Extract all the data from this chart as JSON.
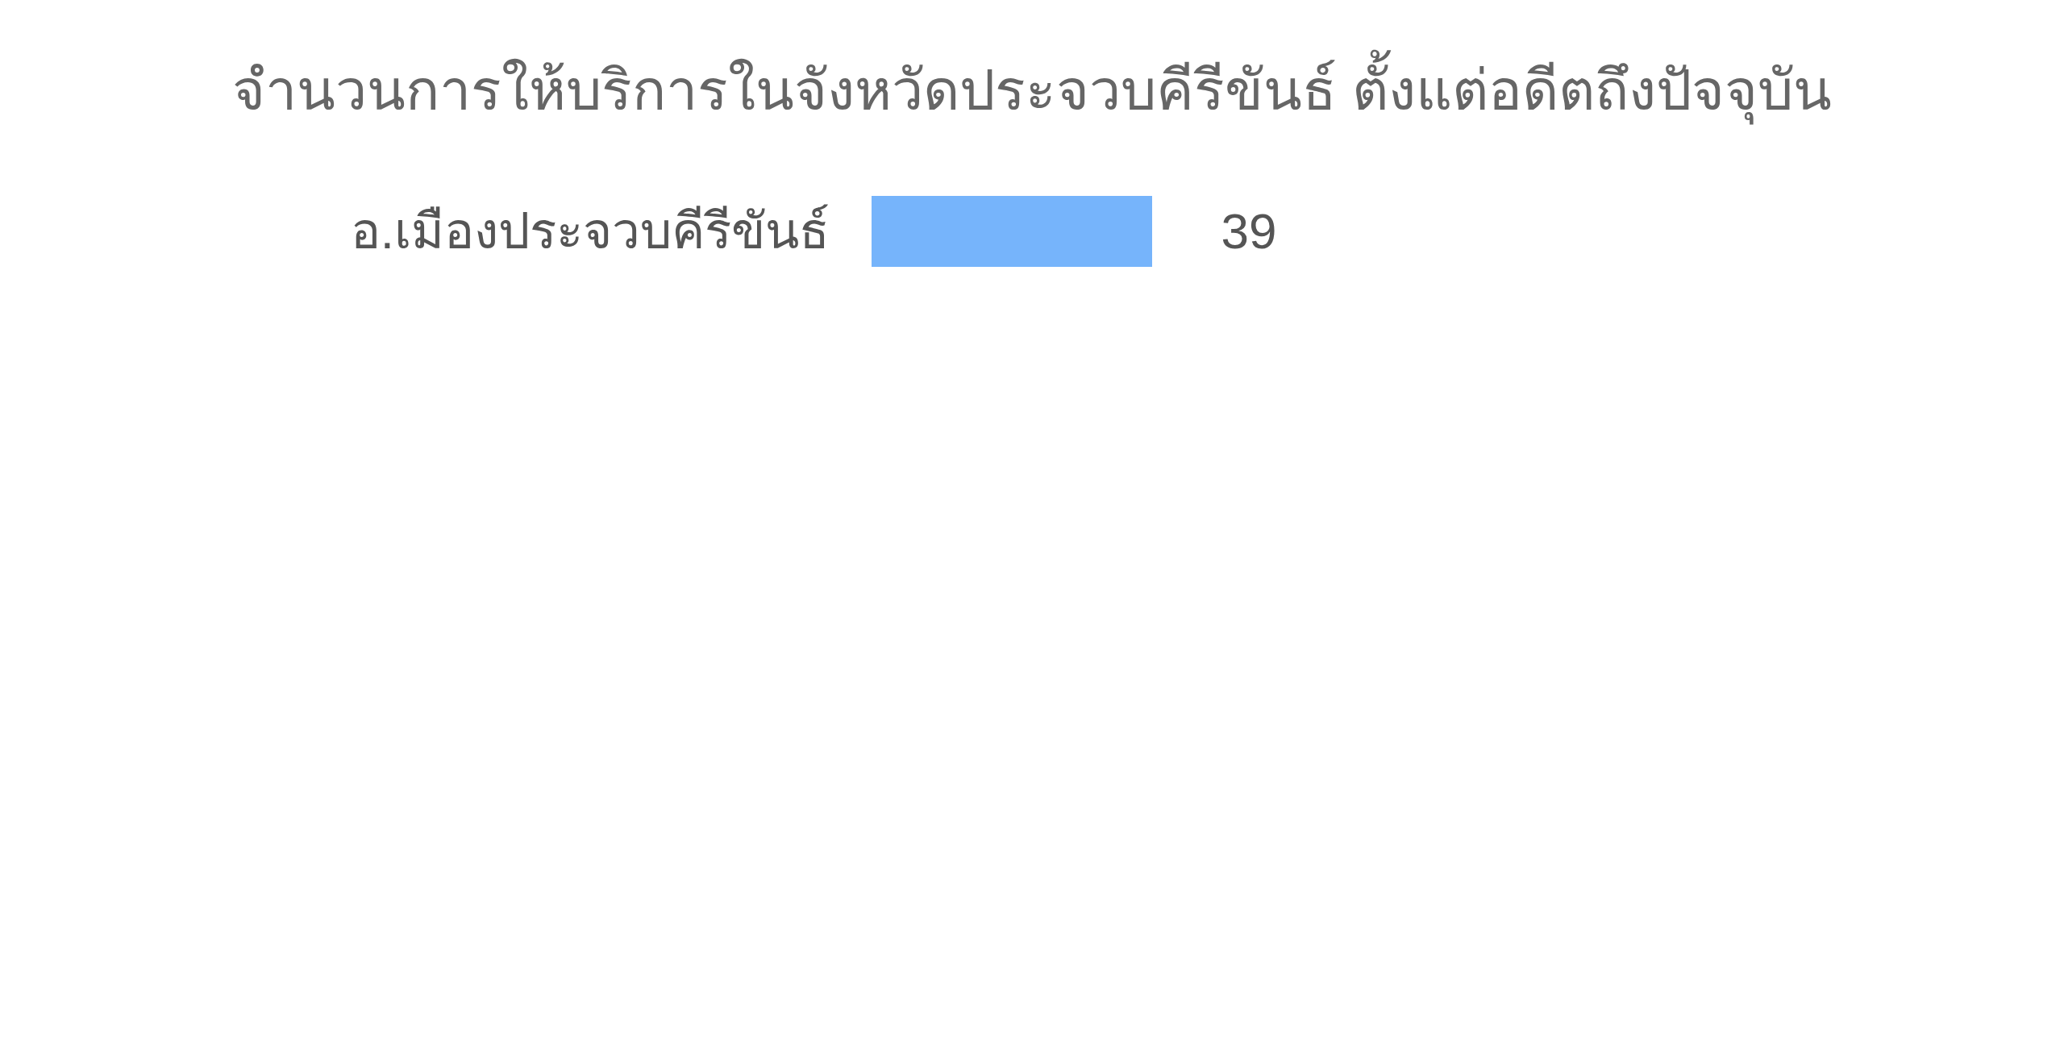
{
  "chart_data": {
    "type": "bar",
    "orientation": "horizontal",
    "title": "จำนวนการให้บริการในจังหวัดประจวบคีรีขันธ์ ตั้งแต่อดีตถึงปัจจุบัน",
    "categories": [
      "อ.เมืองประจวบคีรีขันธ์"
    ],
    "values": [
      39
    ],
    "color": "#76b4fb",
    "data_labels": true
  }
}
